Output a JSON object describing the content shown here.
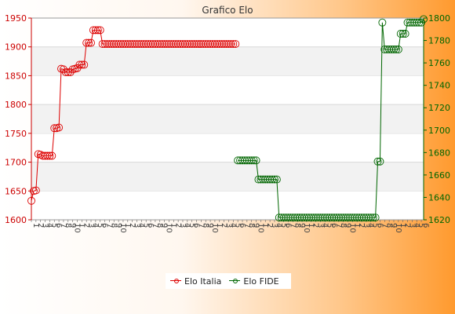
{
  "chart_data": {
    "type": "line",
    "title": "Grafico Elo",
    "x_tick_labels": [
      "1",
      "2",
      "3",
      "4",
      "5",
      "6",
      "7",
      "8",
      "9",
      "10"
    ],
    "y_left": {
      "ylim": [
        1600,
        1950
      ],
      "ticks": [
        1600,
        1650,
        1700,
        1750,
        1800,
        1850,
        1900,
        1950
      ],
      "color": "#cc0000"
    },
    "y_right": {
      "ylim": [
        1620,
        1800
      ],
      "ticks": [
        1620,
        1640,
        1660,
        1680,
        1700,
        1720,
        1740,
        1760,
        1780,
        1800
      ],
      "color": "#006600"
    },
    "grid": true,
    "legend_position": "bottom-center",
    "series": [
      {
        "name": "Elo Italia",
        "axis": "left",
        "color": "#dd0000",
        "points": [
          [
            0,
            1633
          ],
          [
            1,
            1650
          ],
          [
            2,
            1651
          ],
          [
            3,
            1714
          ],
          [
            4,
            1713
          ],
          [
            5,
            1711
          ],
          [
            6,
            1711
          ],
          [
            7,
            1711
          ],
          [
            8,
            1711
          ],
          [
            9,
            1711
          ],
          [
            10,
            1759
          ],
          [
            11,
            1759
          ],
          [
            12,
            1760
          ],
          [
            13,
            1862
          ],
          [
            14,
            1861
          ],
          [
            15,
            1856
          ],
          [
            16,
            1856
          ],
          [
            17,
            1856
          ],
          [
            18,
            1861
          ],
          [
            19,
            1862
          ],
          [
            20,
            1863
          ],
          [
            21,
            1869
          ],
          [
            22,
            1869
          ],
          [
            23,
            1869
          ],
          [
            24,
            1907
          ],
          [
            25,
            1907
          ],
          [
            26,
            1907
          ],
          [
            27,
            1929
          ],
          [
            28,
            1929
          ],
          [
            29,
            1929
          ],
          [
            30,
            1929
          ],
          [
            31,
            1905
          ],
          [
            32,
            1905
          ],
          [
            33,
            1905
          ],
          [
            34,
            1905
          ],
          [
            35,
            1905
          ],
          [
            36,
            1905
          ],
          [
            37,
            1905
          ],
          [
            38,
            1905
          ],
          [
            39,
            1905
          ],
          [
            40,
            1905
          ],
          [
            41,
            1905
          ],
          [
            42,
            1905
          ],
          [
            43,
            1905
          ],
          [
            44,
            1905
          ],
          [
            45,
            1905
          ],
          [
            46,
            1905
          ],
          [
            47,
            1905
          ],
          [
            48,
            1905
          ],
          [
            49,
            1905
          ],
          [
            50,
            1905
          ],
          [
            51,
            1905
          ],
          [
            52,
            1905
          ],
          [
            53,
            1905
          ],
          [
            54,
            1905
          ],
          [
            55,
            1905
          ],
          [
            56,
            1905
          ],
          [
            57,
            1905
          ],
          [
            58,
            1905
          ],
          [
            59,
            1905
          ],
          [
            60,
            1905
          ],
          [
            61,
            1905
          ],
          [
            62,
            1905
          ],
          [
            63,
            1905
          ],
          [
            64,
            1905
          ],
          [
            65,
            1905
          ],
          [
            66,
            1905
          ],
          [
            67,
            1905
          ],
          [
            68,
            1905
          ],
          [
            69,
            1905
          ],
          [
            70,
            1905
          ],
          [
            71,
            1905
          ],
          [
            72,
            1905
          ],
          [
            73,
            1905
          ],
          [
            74,
            1905
          ],
          [
            75,
            1905
          ],
          [
            76,
            1905
          ],
          [
            77,
            1905
          ],
          [
            78,
            1905
          ],
          [
            79,
            1905
          ],
          [
            80,
            1905
          ],
          [
            81,
            1905
          ],
          [
            82,
            1905
          ],
          [
            83,
            1905
          ],
          [
            84,
            1905
          ],
          [
            85,
            1905
          ],
          [
            86,
            1905
          ],
          [
            87,
            1905
          ],
          [
            88,
            1905
          ],
          [
            89,
            1905
          ]
        ]
      },
      {
        "name": "Elo FIDE",
        "axis": "right",
        "color": "#006600",
        "points": [
          [
            90,
            1673
          ],
          [
            91,
            1673
          ],
          [
            92,
            1673
          ],
          [
            93,
            1673
          ],
          [
            94,
            1673
          ],
          [
            95,
            1673
          ],
          [
            96,
            1673
          ],
          [
            97,
            1673
          ],
          [
            98,
            1673
          ],
          [
            99,
            1656
          ],
          [
            100,
            1656
          ],
          [
            101,
            1656
          ],
          [
            102,
            1656
          ],
          [
            103,
            1656
          ],
          [
            104,
            1656
          ],
          [
            105,
            1656
          ],
          [
            106,
            1656
          ],
          [
            107,
            1656
          ],
          [
            108,
            1622
          ],
          [
            109,
            1622
          ],
          [
            110,
            1622
          ],
          [
            111,
            1622
          ],
          [
            112,
            1622
          ],
          [
            113,
            1622
          ],
          [
            114,
            1622
          ],
          [
            115,
            1622
          ],
          [
            116,
            1622
          ],
          [
            117,
            1622
          ],
          [
            118,
            1622
          ],
          [
            119,
            1622
          ],
          [
            120,
            1622
          ],
          [
            121,
            1622
          ],
          [
            122,
            1622
          ],
          [
            123,
            1622
          ],
          [
            124,
            1622
          ],
          [
            125,
            1622
          ],
          [
            126,
            1622
          ],
          [
            127,
            1622
          ],
          [
            128,
            1622
          ],
          [
            129,
            1622
          ],
          [
            130,
            1622
          ],
          [
            131,
            1622
          ],
          [
            132,
            1622
          ],
          [
            133,
            1622
          ],
          [
            134,
            1622
          ],
          [
            135,
            1622
          ],
          [
            136,
            1622
          ],
          [
            137,
            1622
          ],
          [
            138,
            1622
          ],
          [
            139,
            1622
          ],
          [
            140,
            1622
          ],
          [
            141,
            1622
          ],
          [
            142,
            1622
          ],
          [
            143,
            1622
          ],
          [
            144,
            1622
          ],
          [
            145,
            1622
          ],
          [
            146,
            1622
          ],
          [
            147,
            1622
          ],
          [
            148,
            1622
          ],
          [
            149,
            1622
          ],
          [
            150,
            1622
          ],
          [
            151,
            1672
          ],
          [
            152,
            1672
          ],
          [
            153,
            1796
          ],
          [
            154,
            1772
          ],
          [
            155,
            1772
          ],
          [
            156,
            1772
          ],
          [
            157,
            1772
          ],
          [
            158,
            1772
          ],
          [
            159,
            1772
          ],
          [
            160,
            1772
          ],
          [
            161,
            1786
          ],
          [
            162,
            1786
          ],
          [
            163,
            1786
          ],
          [
            164,
            1796
          ],
          [
            165,
            1796
          ],
          [
            166,
            1796
          ],
          [
            167,
            1796
          ],
          [
            168,
            1796
          ],
          [
            169,
            1796
          ],
          [
            170,
            1796
          ],
          [
            171,
            1799
          ]
        ]
      }
    ]
  }
}
